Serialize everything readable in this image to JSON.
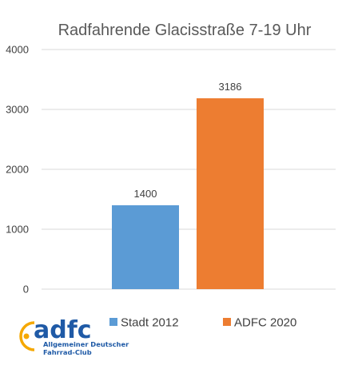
{
  "chart_data": {
    "type": "bar",
    "title": "Radfahrende Glacisstraße 7-19 Uhr",
    "categories": [
      ""
    ],
    "series": [
      {
        "name": "Stadt 2012",
        "values": [
          1400
        ],
        "color": "#5b9bd5"
      },
      {
        "name": "ADFC 2020",
        "values": [
          3186
        ],
        "color": "#ed7d31"
      }
    ],
    "ylim": [
      0,
      4000
    ],
    "yticks": [
      "0",
      "1000",
      "2000",
      "3000",
      "4000"
    ],
    "grid": true,
    "legend": "bottom"
  },
  "logo": {
    "word": "adfc",
    "line1": "Allgemeiner Deutscher",
    "line2": "Fahrrad-Club",
    "color": "#1f5aa6",
    "accent": "#f5a800"
  }
}
